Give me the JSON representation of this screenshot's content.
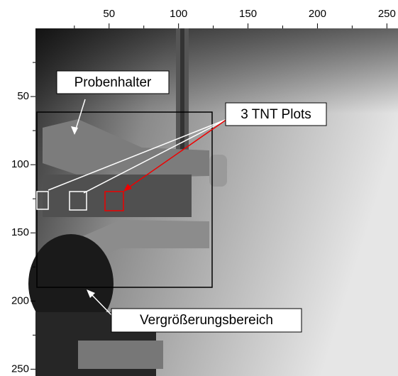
{
  "chart_data": {
    "type": "image",
    "xlim": [
      -3,
      258
    ],
    "ylim": [
      0,
      255
    ],
    "xticks": [
      50,
      100,
      150,
      200,
      250
    ],
    "yticks": [
      50,
      100,
      150,
      200,
      250
    ],
    "xminorticks": [
      25,
      75,
      125,
      175,
      225
    ],
    "yminorticks": [
      25,
      75,
      125,
      175,
      225
    ],
    "annotations": [
      "Probenhalter",
      "3 TNT Plots",
      "Vergrößerungsbereich"
    ]
  }
}
